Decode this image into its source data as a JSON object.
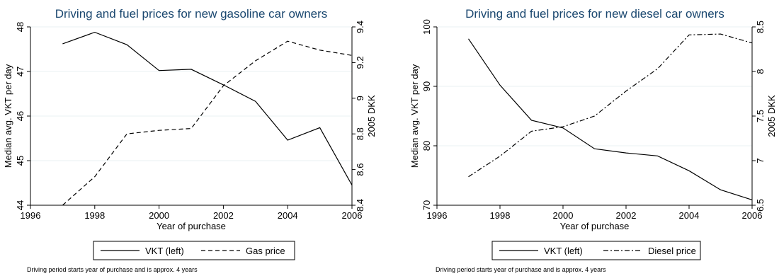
{
  "chart_data": [
    {
      "type": "line",
      "title": "Driving and fuel prices for new gasoline car owners",
      "xlabel": "Year of purchase",
      "ylabel_left": "Median avg. VKT per day",
      "ylabel_right": "2005 DKK",
      "xlim": [
        1996,
        2006
      ],
      "x_ticks": [
        "1996",
        "1998",
        "2000",
        "2002",
        "2004",
        "2006"
      ],
      "ylim_left": [
        44,
        48
      ],
      "y_ticks_left": [
        "44",
        "45",
        "46",
        "47",
        "48"
      ],
      "ylim_right": [
        8.4,
        9.4
      ],
      "y_ticks_right": [
        "8.4",
        "8.6",
        "8.8",
        "9",
        "9.2",
        "9.4"
      ],
      "grid": true,
      "legend_position": "bottom",
      "series": [
        {
          "name": "VKT (left)",
          "axis": "left",
          "style": "solid",
          "x": [
            1997,
            1998,
            1999,
            2000,
            2001,
            2002,
            2003,
            2004,
            2005,
            2006
          ],
          "y": [
            47.62,
            47.88,
            47.6,
            47.02,
            47.05,
            46.7,
            46.33,
            45.46,
            45.74,
            44.45
          ]
        },
        {
          "name": "Gas price",
          "axis": "right",
          "style": "dashed",
          "x": [
            1997,
            1998,
            1999,
            2000,
            2001,
            2002,
            2003,
            2004,
            2005,
            2006
          ],
          "y": [
            8.4,
            8.56,
            8.8,
            8.82,
            8.83,
            9.07,
            9.21,
            9.32,
            9.27,
            9.24
          ]
        }
      ],
      "note": "Driving period starts year of purchase and is approx. 4 years"
    },
    {
      "type": "line",
      "title": "Driving and fuel prices for new diesel car owners",
      "xlabel": "Year of purchase",
      "ylabel_left": "Median avg. VKT per day",
      "ylabel_right": "2005 DKK",
      "xlim": [
        1996,
        2006
      ],
      "x_ticks": [
        "1996",
        "1998",
        "2000",
        "2002",
        "2004",
        "2006"
      ],
      "ylim_left": [
        70,
        100
      ],
      "y_ticks_left": [
        "70",
        "80",
        "90",
        "100"
      ],
      "ylim_right": [
        6.5,
        8.5
      ],
      "y_ticks_right": [
        "6.5",
        "7",
        "7.5",
        "8",
        "8.5"
      ],
      "grid": true,
      "legend_position": "bottom",
      "series": [
        {
          "name": "VKT (left)",
          "axis": "left",
          "style": "solid",
          "x": [
            1997,
            1998,
            1999,
            2000,
            2001,
            2002,
            2003,
            2004,
            2005,
            2006
          ],
          "y": [
            98,
            90.2,
            84.3,
            83,
            79.5,
            78.8,
            78.3,
            75.8,
            72.6,
            70.9
          ]
        },
        {
          "name": "Diesel price",
          "axis": "right",
          "style": "dashdot",
          "x": [
            1997,
            1998,
            1999,
            2000,
            2001,
            2002,
            2003,
            2004,
            2005,
            2006
          ],
          "y": [
            6.82,
            7.05,
            7.33,
            7.38,
            7.5,
            7.78,
            8.03,
            8.41,
            8.42,
            8.32
          ]
        }
      ],
      "note": "Driving period starts year of purchase and is approx. 4 years"
    }
  ]
}
